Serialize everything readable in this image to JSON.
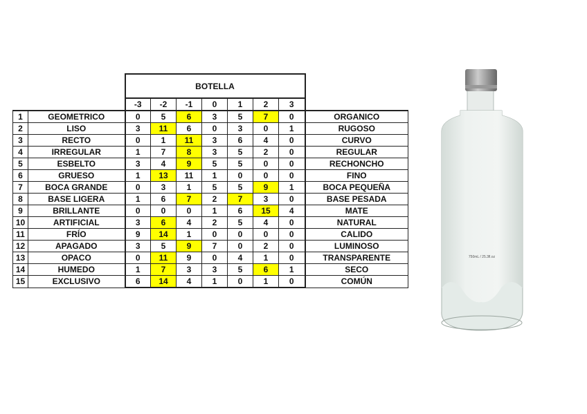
{
  "table": {
    "title": "BOTELLA",
    "scale": [
      "-3",
      "-2",
      "-1",
      "0",
      "1",
      "2",
      "3"
    ],
    "rows": [
      {
        "n": "1",
        "left": "GEOMETRICO",
        "values": [
          0,
          5,
          6,
          3,
          5,
          7,
          0
        ],
        "highlight": [
          2,
          5
        ],
        "right": "ORGANICO"
      },
      {
        "n": "2",
        "left": "LISO",
        "values": [
          3,
          11,
          6,
          0,
          3,
          0,
          1
        ],
        "highlight": [
          1
        ],
        "right": "RUGOSO"
      },
      {
        "n": "3",
        "left": "RECTO",
        "values": [
          0,
          1,
          11,
          3,
          6,
          4,
          0
        ],
        "highlight": [
          2
        ],
        "right": "CURVO"
      },
      {
        "n": "4",
        "left": "IRREGULAR",
        "values": [
          1,
          7,
          8,
          3,
          5,
          2,
          0
        ],
        "highlight": [
          2
        ],
        "right": "REGULAR"
      },
      {
        "n": "5",
        "left": "ESBELTO",
        "values": [
          3,
          4,
          9,
          5,
          5,
          0,
          0
        ],
        "highlight": [
          2
        ],
        "right": "RECHONCHO"
      },
      {
        "n": "6",
        "left": "GRUESO",
        "values": [
          1,
          13,
          11,
          1,
          0,
          0,
          0
        ],
        "highlight": [
          1
        ],
        "right": "FINO"
      },
      {
        "n": "7",
        "left": "BOCA GRANDE",
        "values": [
          0,
          3,
          1,
          5,
          5,
          9,
          1
        ],
        "highlight": [
          5
        ],
        "right": "BOCA PEQUEÑA"
      },
      {
        "n": "8",
        "left": "BASE LIGERA",
        "values": [
          1,
          6,
          7,
          2,
          7,
          3,
          0
        ],
        "highlight": [
          2,
          4
        ],
        "right": "BASE PESADA"
      },
      {
        "n": "9",
        "left": "BRILLANTE",
        "values": [
          0,
          0,
          0,
          1,
          6,
          15,
          4
        ],
        "highlight": [
          5
        ],
        "right": "MATE"
      },
      {
        "n": "10",
        "left": "ARTIFICIAL",
        "values": [
          3,
          6,
          4,
          2,
          5,
          4,
          0
        ],
        "highlight": [
          1
        ],
        "right": "NATURAL"
      },
      {
        "n": "11",
        "left": "FRÍO",
        "values": [
          9,
          14,
          1,
          0,
          0,
          0,
          0
        ],
        "highlight": [
          1
        ],
        "right": "CALIDO"
      },
      {
        "n": "12",
        "left": "APAGADO",
        "values": [
          3,
          5,
          9,
          7,
          0,
          2,
          0
        ],
        "highlight": [
          2
        ],
        "right": "LUMINOSO"
      },
      {
        "n": "13",
        "left": "OPACO",
        "values": [
          0,
          11,
          9,
          0,
          4,
          1,
          0
        ],
        "highlight": [
          1
        ],
        "right": "TRANSPARENTE"
      },
      {
        "n": "14",
        "left": "HUMEDO",
        "values": [
          1,
          7,
          3,
          3,
          5,
          6,
          1
        ],
        "highlight": [
          1,
          5
        ],
        "right": "SECO"
      },
      {
        "n": "15",
        "left": "EXCLUSIVO",
        "values": [
          6,
          14,
          4,
          1,
          0,
          1,
          0
        ],
        "highlight": [
          1
        ],
        "right": "COMÚN"
      }
    ],
    "highlight_color": "#ffff00"
  },
  "bottle": {
    "label": "750mL / 25.3fl.oz"
  }
}
